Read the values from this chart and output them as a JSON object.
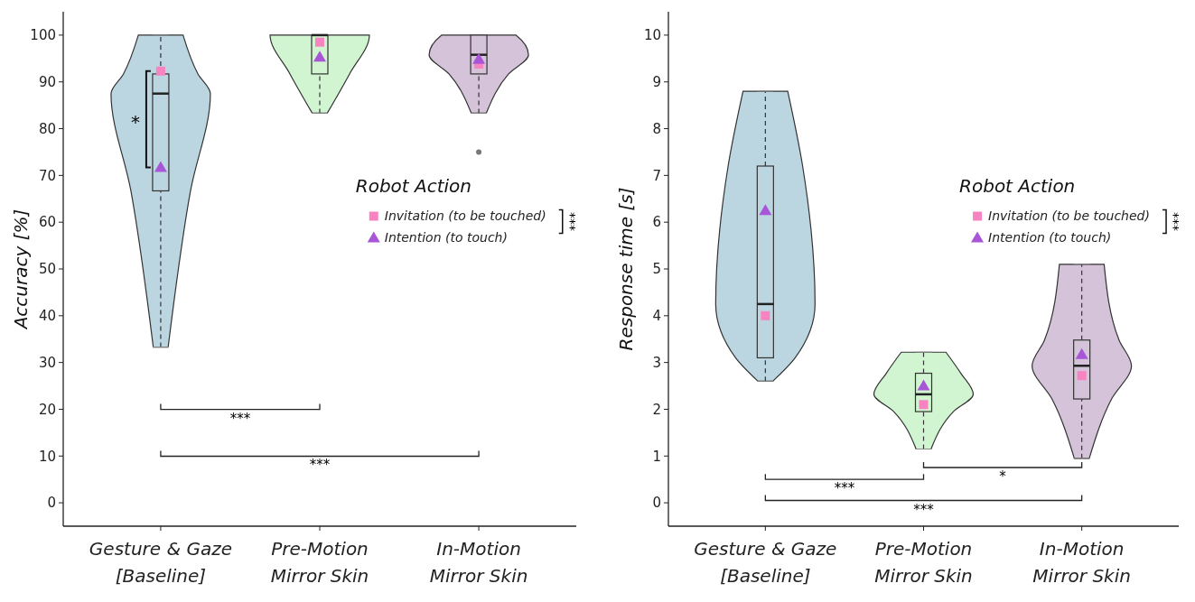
{
  "chart_data": [
    {
      "type": "box",
      "ylabel": "Accuracy [%]",
      "categories": [
        "Gesture & Gaze\n[Baseline]",
        "Pre-Motion\nMirror Skin",
        "In-Motion\nMirror Skin"
      ],
      "colors": [
        "#bcd6e1",
        "#d1f4d1",
        "#d4c3d9"
      ],
      "ylim": [
        -5,
        105
      ],
      "yticks": [
        0,
        10,
        20,
        30,
        40,
        50,
        60,
        70,
        80,
        90,
        100
      ],
      "boxes": [
        {
          "low": 33.3,
          "q1": 66.7,
          "median": 87.5,
          "q3": 91.7,
          "high": 100
        },
        {
          "low": 83.3,
          "q1": 91.7,
          "median": 100,
          "q3": 100,
          "high": 100
        },
        {
          "low": 83.3,
          "q1": 91.7,
          "median": 95.8,
          "q3": 100,
          "high": 100,
          "outliers": [
            75
          ]
        }
      ],
      "series": [
        {
          "type": "scatter",
          "name": "Invitation (to be touched)",
          "color": "#f784c0",
          "marker": "square",
          "x": [
            "Gesture & Gaze\n[Baseline]",
            "Pre-Motion\nMirror Skin",
            "In-Motion\nMirror Skin"
          ],
          "values": [
            92.3,
            98.5,
            93.8
          ]
        },
        {
          "type": "scatter",
          "name": "Intention (to touch)",
          "color": "#a855d8",
          "marker": "triangle",
          "x": [
            "Gesture & Gaze\n[Baseline]",
            "Pre-Motion\nMirror Skin",
            "In-Motion\nMirror Skin"
          ],
          "values": [
            71.7,
            95.3,
            94.8
          ]
        }
      ],
      "legend": "right",
      "legend_title": "Robot Action",
      "annotations": [
        "*",
        "***",
        "***",
        "***"
      ]
    },
    {
      "type": "box",
      "ylabel": "Response time [s]",
      "categories": [
        "Gesture & Gaze\n[Baseline]",
        "Pre-Motion\nMirror Skin",
        "In-Motion\nMirror Skin"
      ],
      "colors": [
        "#bcd6e1",
        "#d1f4d1",
        "#d4c3d9"
      ],
      "ylim": [
        -0.5,
        10.5
      ],
      "yticks": [
        0,
        1,
        2,
        3,
        4,
        5,
        6,
        7,
        8,
        9,
        10
      ],
      "boxes": [
        {
          "low": 2.6,
          "q1": 3.1,
          "median": 4.25,
          "q3": 7.2,
          "high": 8.8
        },
        {
          "low": 1.15,
          "q1": 1.95,
          "median": 2.32,
          "q3": 2.77,
          "high": 3.22
        },
        {
          "low": 0.95,
          "q1": 2.22,
          "median": 2.93,
          "q3": 3.48,
          "high": 5.1
        }
      ],
      "series": [
        {
          "type": "scatter",
          "name": "Invitation (to be touched)",
          "color": "#f784c0",
          "marker": "square",
          "x": [
            "Gesture & Gaze\n[Baseline]",
            "Pre-Motion\nMirror Skin",
            "In-Motion\nMirror Skin"
          ],
          "values": [
            4.0,
            2.1,
            2.72
          ]
        },
        {
          "type": "scatter",
          "name": "Intention (to touch)",
          "color": "#a855d8",
          "marker": "triangle",
          "x": [
            "Gesture & Gaze\n[Baseline]",
            "Pre-Motion\nMirror Skin",
            "In-Motion\nMirror Skin"
          ],
          "values": [
            6.25,
            2.5,
            3.17
          ]
        }
      ],
      "legend": "right",
      "legend_title": "Robot Action",
      "annotations": [
        "***",
        "*",
        "***",
        "***"
      ]
    }
  ]
}
